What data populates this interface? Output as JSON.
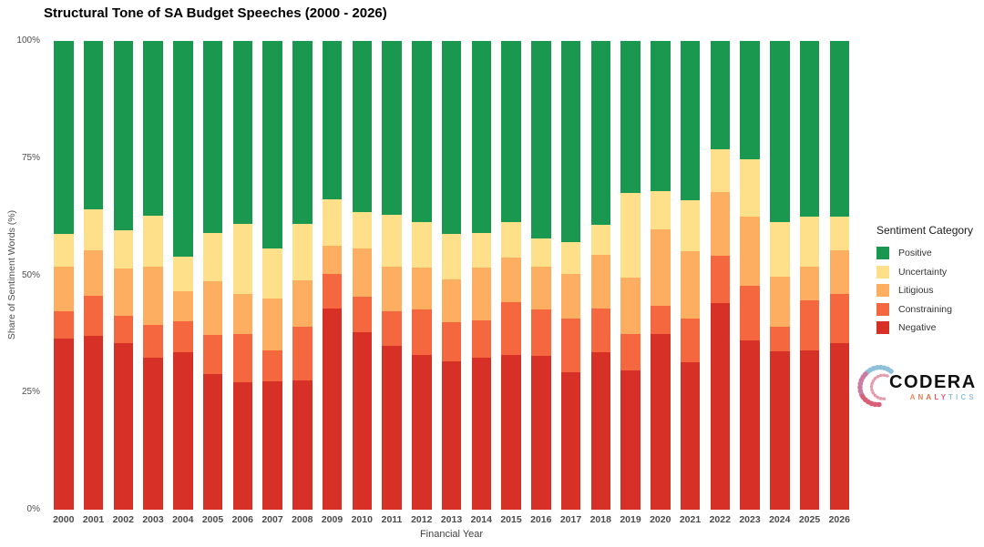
{
  "title": "Structural Tone of SA Budget Speeches (2000 - 2026)",
  "y_axis": {
    "title": "Share of Sentiment Words (%)",
    "ticks": [
      {
        "label": "0%",
        "value": 0
      },
      {
        "label": "25%",
        "value": 25
      },
      {
        "label": "50%",
        "value": 50
      },
      {
        "label": "75%",
        "value": 75
      },
      {
        "label": "100%",
        "value": 100
      }
    ]
  },
  "x_axis": {
    "title": "Financial Year"
  },
  "legend": {
    "title": "Sentiment Category"
  },
  "chart_data": {
    "type": "bar",
    "stacked": true,
    "normalized": true,
    "title": "Structural Tone of SA Budget Speeches (2000 - 2026)",
    "xlabel": "Financial Year",
    "ylabel": "Share of Sentiment Words (%)",
    "ylim": [
      0,
      100
    ],
    "grid": false,
    "legend_position": "right",
    "legend_order": [
      "Positive",
      "Uncertainty",
      "Litigious",
      "Constraining",
      "Negative"
    ],
    "categories": [
      2000,
      2001,
      2002,
      2003,
      2004,
      2005,
      2006,
      2007,
      2008,
      2009,
      2010,
      2011,
      2012,
      2013,
      2014,
      2015,
      2016,
      2017,
      2018,
      2019,
      2020,
      2021,
      2022,
      2023,
      2024,
      2025,
      2026
    ],
    "series": [
      {
        "name": "Negative",
        "color": "#D73027",
        "values": [
          36.5,
          37.0,
          35.6,
          32.4,
          33.5,
          28.9,
          27.2,
          27.4,
          27.5,
          42.9,
          37.9,
          35.0,
          33.0,
          31.6,
          32.5,
          33.1,
          32.9,
          29.4,
          33.5,
          29.8,
          37.5,
          31.4,
          44.1,
          36.1,
          33.7,
          34.0,
          35.6
        ]
      },
      {
        "name": "Constraining",
        "color": "#F4673F",
        "values": [
          5.9,
          8.6,
          5.8,
          7.1,
          6.6,
          8.3,
          10.3,
          6.6,
          11.5,
          7.4,
          7.5,
          7.4,
          9.7,
          8.4,
          7.9,
          11.2,
          9.8,
          11.4,
          9.5,
          7.7,
          5.9,
          9.4,
          10.1,
          11.7,
          5.3,
          10.7,
          10.4
        ]
      },
      {
        "name": "Litigious",
        "color": "#FDAE61",
        "values": [
          9.4,
          9.7,
          10.1,
          12.4,
          6.5,
          11.5,
          8.5,
          11.0,
          10.0,
          6.0,
          10.3,
          9.4,
          9.0,
          9.2,
          11.3,
          9.5,
          9.2,
          9.4,
          11.4,
          12.0,
          16.5,
          14.3,
          13.6,
          14.7,
          10.8,
          7.1,
          9.3
        ]
      },
      {
        "name": "Uncertainty",
        "color": "#FEE08B",
        "values": [
          7.0,
          8.8,
          8.1,
          10.8,
          7.4,
          10.3,
          15.0,
          10.8,
          12.0,
          10.0,
          7.8,
          11.1,
          9.6,
          9.6,
          7.3,
          7.5,
          5.9,
          6.8,
          6.4,
          18.1,
          8.1,
          10.9,
          9.1,
          12.3,
          11.5,
          10.7,
          7.2
        ]
      },
      {
        "name": "Positive",
        "color": "#1A9850",
        "values": [
          41.2,
          35.9,
          40.4,
          37.3,
          46.0,
          41.0,
          39.0,
          44.2,
          39.0,
          33.7,
          36.5,
          37.1,
          38.7,
          41.2,
          41.0,
          38.7,
          42.2,
          43.0,
          39.2,
          32.4,
          32.0,
          34.0,
          23.1,
          25.2,
          38.7,
          37.5,
          37.5
        ]
      }
    ]
  },
  "logo": {
    "brand": "CODERA",
    "sub": "ANALYTICS",
    "sub_colors": [
      "#E98C5F",
      "#E8805A",
      "#E06A55",
      "#DB5858",
      "#D95F76",
      "#8FC0DA",
      "#8FC0DA",
      "#8FC0DA",
      "#9FBCD8"
    ],
    "mark_pink": "#D95F76",
    "mark_blue": "#8FC0DA"
  }
}
